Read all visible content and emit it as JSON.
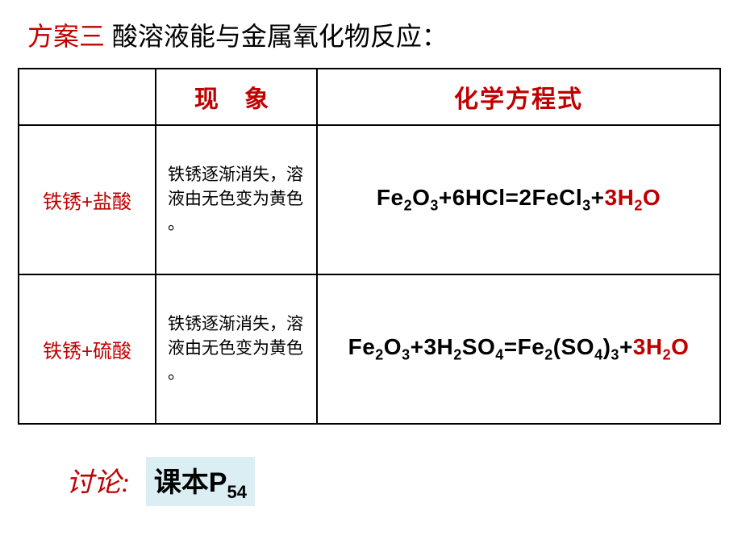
{
  "title": {
    "prefix": "方案三",
    "rest": " 酸溶液能与金属氧化物反应："
  },
  "table": {
    "headers": {
      "reagent": "",
      "phenomenon": "现 象",
      "equation": "化学方程式"
    },
    "rows": [
      {
        "reagent": "铁锈+盐酸",
        "phenomenon": "铁锈逐渐消失，溶液由无色变为黄色 。",
        "equation_html": "Fe<sub>2</sub>O<sub>3</sub>+6HCl=2FeCl<sub>3</sub>+<span class=\"eq-red\">3H<sub>2</sub>O</span>"
      },
      {
        "reagent": "铁锈+硫酸",
        "phenomenon": "铁锈逐渐消失，溶液由无色变为黄色 。",
        "equation_html": "Fe<sub>2</sub>O<sub>3</sub>+3H<sub>2</sub>SO<sub>4</sub>=Fe<sub>2</sub>(SO<sub>4</sub>)<sub>3</sub>+<span class=\"eq-red\">3H<sub>2</sub>O</span>"
      }
    ]
  },
  "footer": {
    "label": "讨论:",
    "ref_html": "课本P<sub>54</sub>"
  },
  "colors": {
    "accent_red": "#c00000",
    "highlight_bg": "#dbeef4",
    "text": "#000000",
    "border": "#000000",
    "background": "#ffffff"
  }
}
